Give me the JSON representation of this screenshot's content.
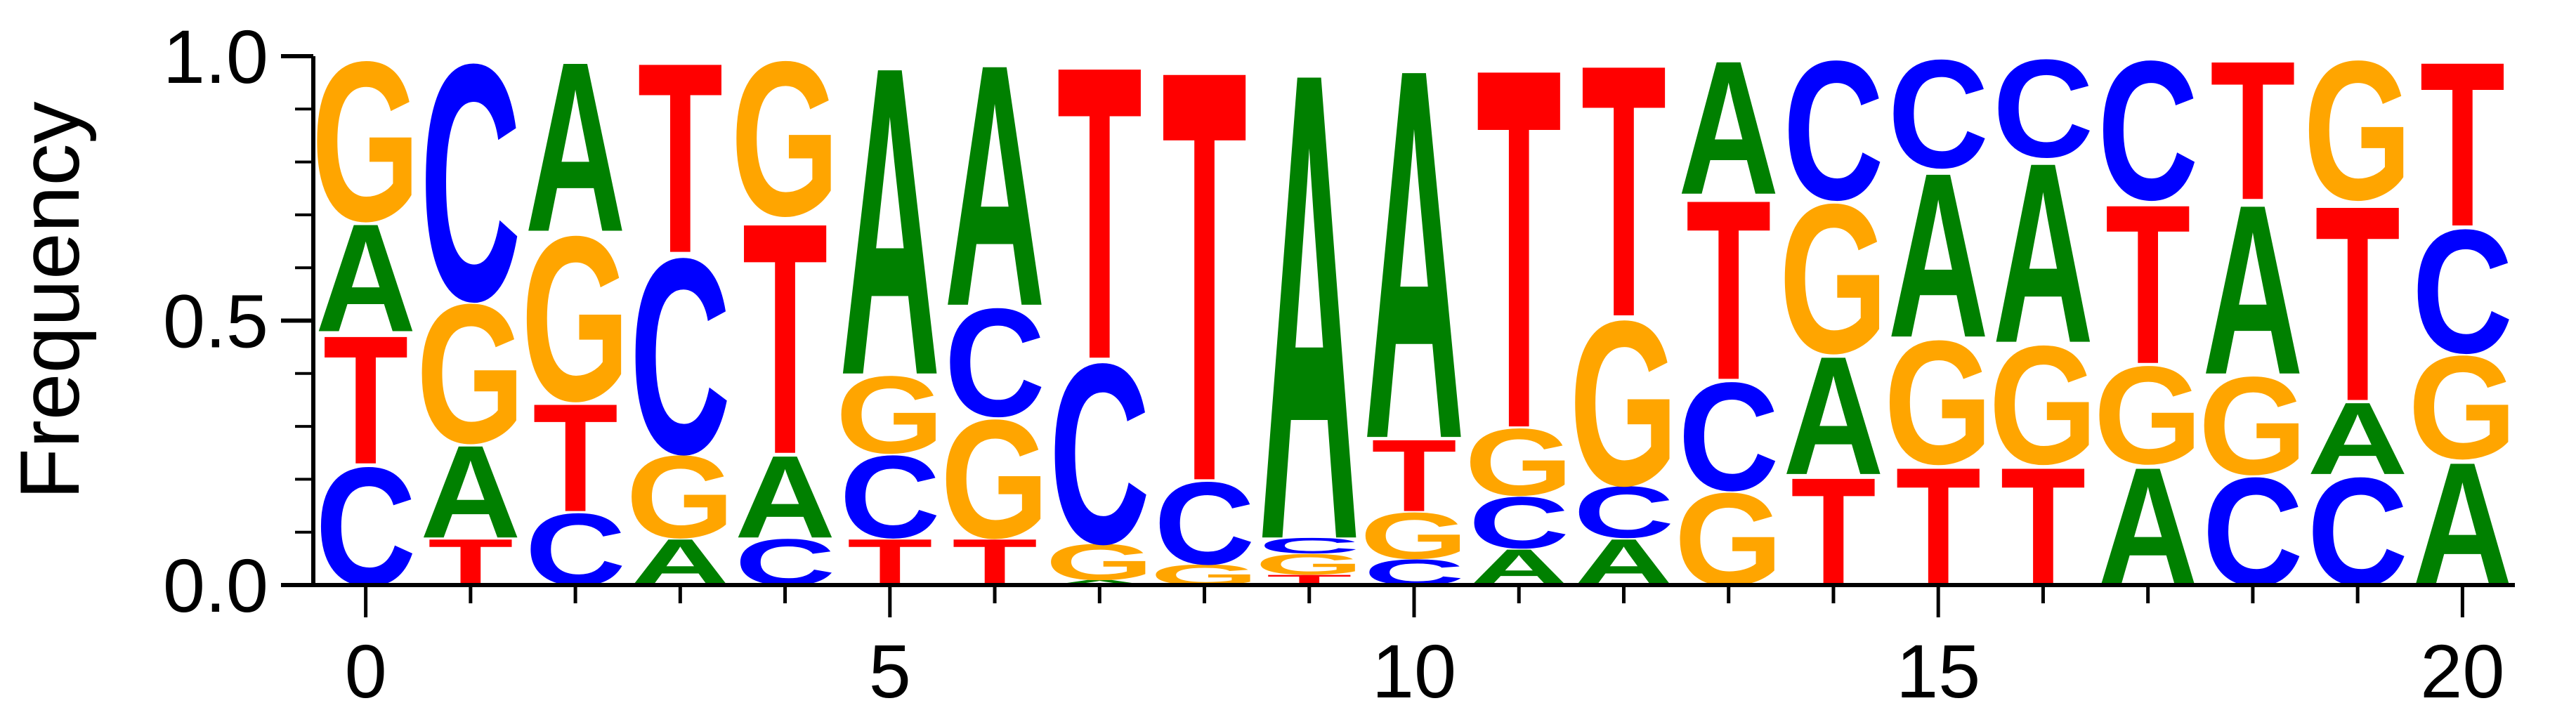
{
  "chart_data": {
    "type": "sequence-logo",
    "ylabel": "Frequency",
    "ylim": [
      0,
      1
    ],
    "yticks": [
      0.0,
      0.5,
      1.0
    ],
    "xticks": [
      0,
      5,
      10,
      15,
      20
    ],
    "xlim": [
      -0.5,
      20.5
    ],
    "colors": {
      "A": "#008000",
      "C": "#0000ff",
      "G": "#ffa500",
      "T": "#ff0000"
    },
    "positions": [
      {
        "x": 0,
        "stack": [
          [
            "C",
            0.23
          ],
          [
            "T",
            0.25
          ],
          [
            "A",
            0.21
          ],
          [
            "G",
            0.31
          ]
        ]
      },
      {
        "x": 1,
        "stack": [
          [
            "T",
            0.09
          ],
          [
            "A",
            0.18
          ],
          [
            "G",
            0.27
          ],
          [
            "C",
            0.46
          ]
        ]
      },
      {
        "x": 2,
        "stack": [
          [
            "C",
            0.14
          ],
          [
            "T",
            0.21
          ],
          [
            "G",
            0.32
          ],
          [
            "A",
            0.33
          ]
        ]
      },
      {
        "x": 3,
        "stack": [
          [
            "A",
            0.09
          ],
          [
            "G",
            0.16
          ],
          [
            "C",
            0.38
          ],
          [
            "T",
            0.37
          ]
        ]
      },
      {
        "x": 4,
        "stack": [
          [
            "C",
            0.09
          ],
          [
            "A",
            0.16
          ],
          [
            "T",
            0.45
          ],
          [
            "G",
            0.3
          ]
        ]
      },
      {
        "x": 5,
        "stack": [
          [
            "T",
            0.09
          ],
          [
            "C",
            0.16
          ],
          [
            "G",
            0.15
          ],
          [
            "A",
            0.6
          ]
        ]
      },
      {
        "x": 6,
        "stack": [
          [
            "T",
            0.09
          ],
          [
            "G",
            0.23
          ],
          [
            "C",
            0.21
          ],
          [
            "A",
            0.47
          ]
        ]
      },
      {
        "x": 7,
        "stack": [
          [
            "A",
            0.01
          ],
          [
            "G",
            0.07
          ],
          [
            "C",
            0.35
          ],
          [
            "T",
            0.57
          ]
        ]
      },
      {
        "x": 8,
        "stack": [
          [
            "G",
            0.04
          ],
          [
            "C",
            0.16
          ],
          [
            "T",
            0.8
          ]
        ]
      },
      {
        "x": 9,
        "stack": [
          [
            "T",
            0.02
          ],
          [
            "G",
            0.04
          ],
          [
            "C",
            0.03
          ],
          [
            "A",
            0.91
          ]
        ]
      },
      {
        "x": 10,
        "stack": [
          [
            "C",
            0.05
          ],
          [
            "G",
            0.09
          ],
          [
            "T",
            0.14
          ],
          [
            "A",
            0.72
          ]
        ]
      },
      {
        "x": 11,
        "stack": [
          [
            "A",
            0.07
          ],
          [
            "C",
            0.1
          ],
          [
            "G",
            0.13
          ],
          [
            "T",
            0.7
          ]
        ]
      },
      {
        "x": 12,
        "stack": [
          [
            "A",
            0.09
          ],
          [
            "C",
            0.1
          ],
          [
            "G",
            0.32
          ],
          [
            "T",
            0.49
          ]
        ]
      },
      {
        "x": 13,
        "stack": [
          [
            "G",
            0.18
          ],
          [
            "C",
            0.21
          ],
          [
            "T",
            0.35
          ],
          [
            "A",
            0.26
          ]
        ]
      },
      {
        "x": 14,
        "stack": [
          [
            "T",
            0.21
          ],
          [
            "A",
            0.23
          ],
          [
            "G",
            0.29
          ],
          [
            "C",
            0.27
          ]
        ]
      },
      {
        "x": 15,
        "stack": [
          [
            "T",
            0.23
          ],
          [
            "G",
            0.24
          ],
          [
            "A",
            0.32
          ],
          [
            "C",
            0.21
          ]
        ]
      },
      {
        "x": 16,
        "stack": [
          [
            "T",
            0.23
          ],
          [
            "G",
            0.23
          ],
          [
            "A",
            0.35
          ],
          [
            "C",
            0.19
          ]
        ]
      },
      {
        "x": 17,
        "stack": [
          [
            "A",
            0.23
          ],
          [
            "G",
            0.19
          ],
          [
            "T",
            0.31
          ],
          [
            "C",
            0.27
          ]
        ]
      },
      {
        "x": 18,
        "stack": [
          [
            "C",
            0.21
          ],
          [
            "G",
            0.19
          ],
          [
            "A",
            0.33
          ],
          [
            "T",
            0.27
          ]
        ]
      },
      {
        "x": 19,
        "stack": [
          [
            "C",
            0.21
          ],
          [
            "A",
            0.14
          ],
          [
            "T",
            0.38
          ],
          [
            "G",
            0.27
          ]
        ]
      },
      {
        "x": 20,
        "stack": [
          [
            "A",
            0.24
          ],
          [
            "G",
            0.2
          ],
          [
            "C",
            0.24
          ],
          [
            "T",
            0.32
          ]
        ]
      }
    ]
  }
}
